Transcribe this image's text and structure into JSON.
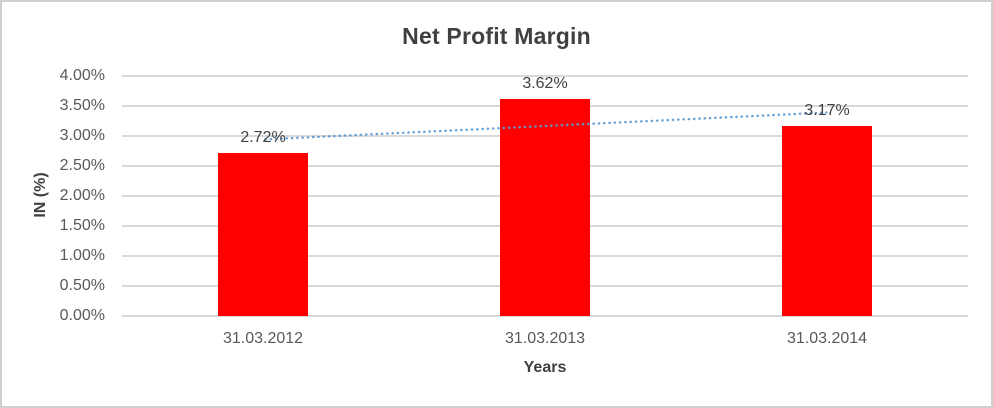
{
  "chart_data": {
    "type": "bar",
    "title": "Net Profit Margin",
    "xlabel": "Years",
    "ylabel": "IN (%)",
    "categories": [
      "31.03.2012",
      "31.03.2013",
      "31.03.2014"
    ],
    "values": [
      2.72,
      3.62,
      3.17
    ],
    "data_labels": [
      "2.72%",
      "3.62%",
      "3.17%"
    ],
    "ylim": [
      0,
      4
    ],
    "ytick_step": 0.5,
    "ytick_labels": [
      "0.00%",
      "0.50%",
      "1.00%",
      "1.50%",
      "2.00%",
      "2.50%",
      "3.00%",
      "3.50%",
      "4.00%"
    ],
    "grid": true,
    "legend": "none",
    "bar_color": "#ff0000",
    "trendline": {
      "type": "linear",
      "style": "dotted",
      "color": "#5b9bd5",
      "start_value": 2.945,
      "end_value": 3.395
    },
    "colors": {
      "title_text": "#404040",
      "axis_text": "#595959",
      "gridline": "#d9d9d9",
      "background": "#ffffff",
      "border": "#cfcfcf"
    }
  }
}
